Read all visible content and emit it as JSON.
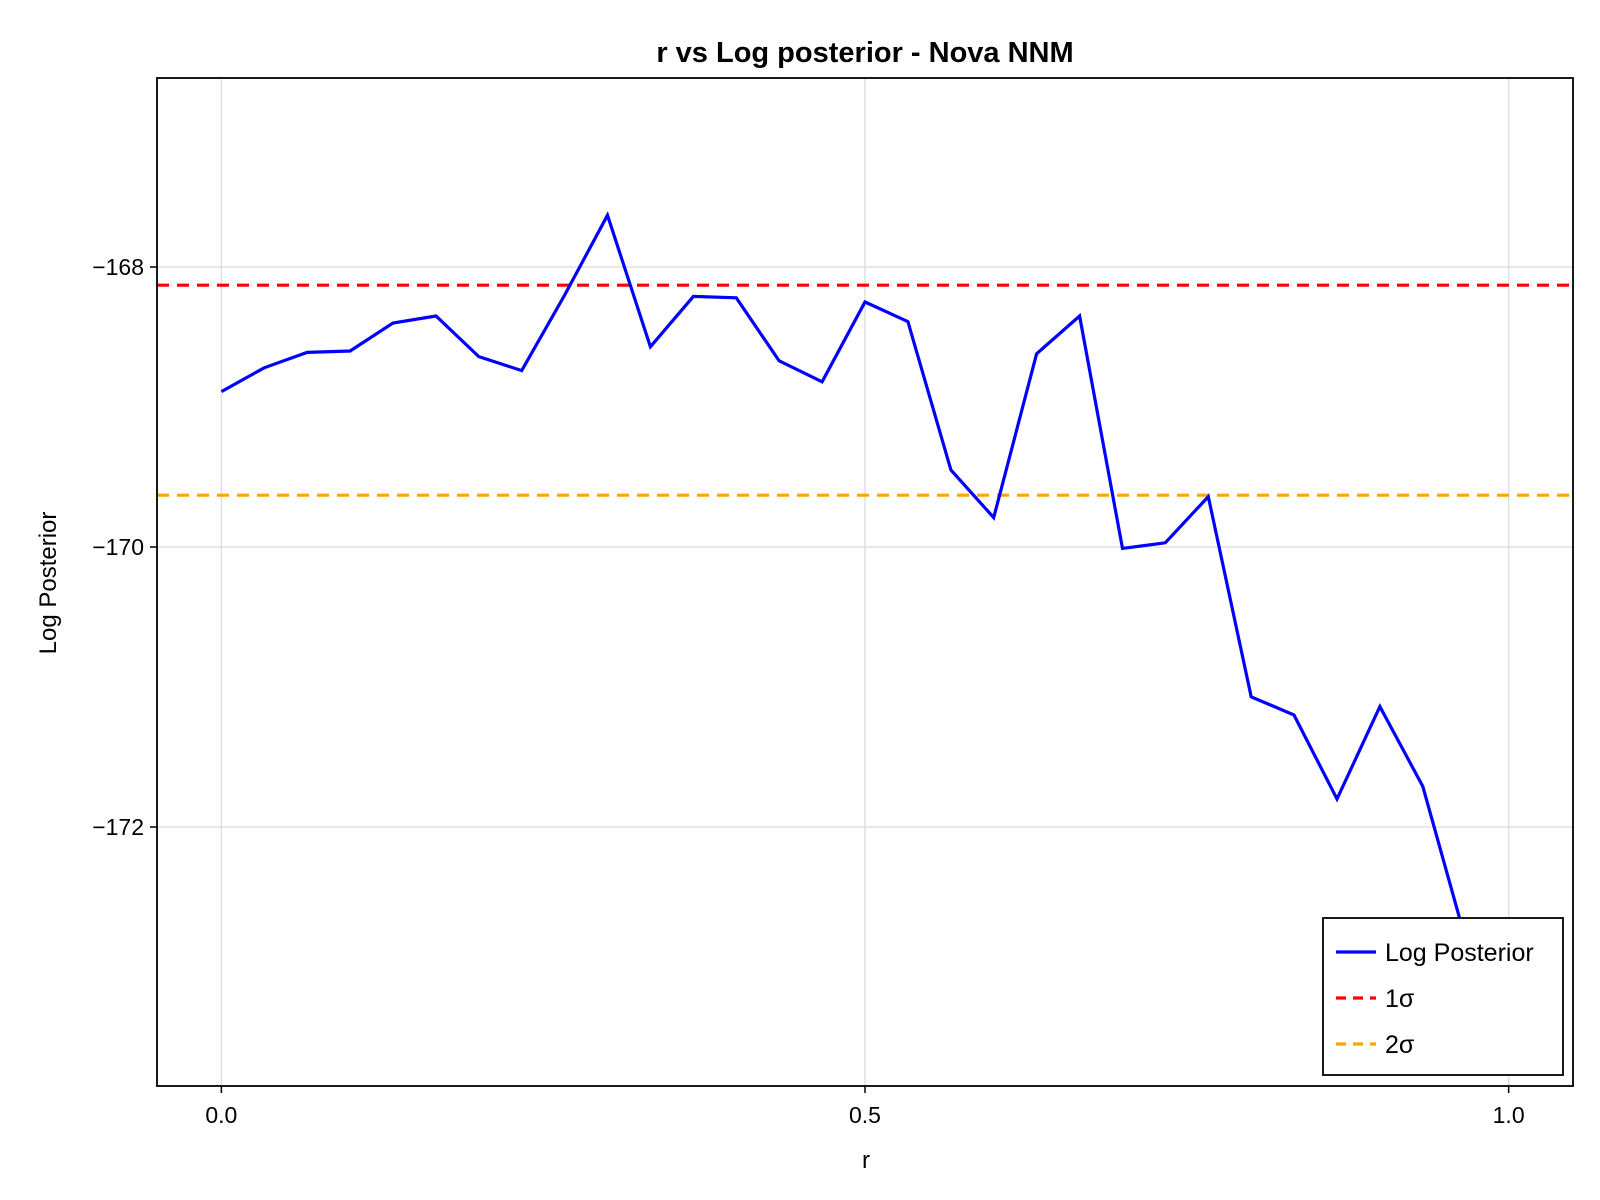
{
  "chart_data": {
    "type": "line",
    "title": "r vs Log posterior - Nova NNM",
    "xlabel": "r",
    "ylabel": "Log Posterior",
    "xlim": [
      -0.05,
      1.05
    ],
    "ylim": [
      -173.85,
      -166.65
    ],
    "xticks": [
      0.0,
      0.5,
      1.0
    ],
    "xtick_labels": [
      "0.0",
      "0.5",
      "1.0"
    ],
    "yticks": [
      -168,
      -170,
      -172
    ],
    "ytick_labels": [
      "−168",
      "−170",
      "−172"
    ],
    "grid": true,
    "legend_position": "bottom-right",
    "series": [
      {
        "name": "Log Posterior",
        "color": "#0000ff",
        "style": "solid",
        "x": [
          0.0,
          0.0333,
          0.0667,
          0.1,
          0.1333,
          0.1667,
          0.2,
          0.2333,
          0.2667,
          0.3,
          0.3333,
          0.3667,
          0.4,
          0.4333,
          0.4667,
          0.5,
          0.5333,
          0.5667,
          0.6,
          0.6333,
          0.6667,
          0.7,
          0.7333,
          0.7667,
          0.8,
          0.8333,
          0.8667,
          0.9,
          0.9333,
          0.9667
        ],
        "values": [
          -168.89,
          -168.72,
          -168.61,
          -168.6,
          -168.4,
          -168.35,
          -168.64,
          -168.74,
          -168.2,
          -167.63,
          -168.57,
          -168.21,
          -168.22,
          -168.67,
          -168.82,
          -168.25,
          -168.39,
          -169.45,
          -169.79,
          -168.62,
          -168.35,
          -170.01,
          -169.97,
          -169.64,
          -171.07,
          -171.2,
          -171.8,
          -171.14,
          -171.71,
          -172.81
        ]
      },
      {
        "name": "1σ",
        "color": "#ff0000",
        "style": "dashed",
        "hline": -168.13
      },
      {
        "name": "2σ",
        "color": "#ffa500",
        "style": "dashed",
        "hline": -169.63
      }
    ]
  }
}
